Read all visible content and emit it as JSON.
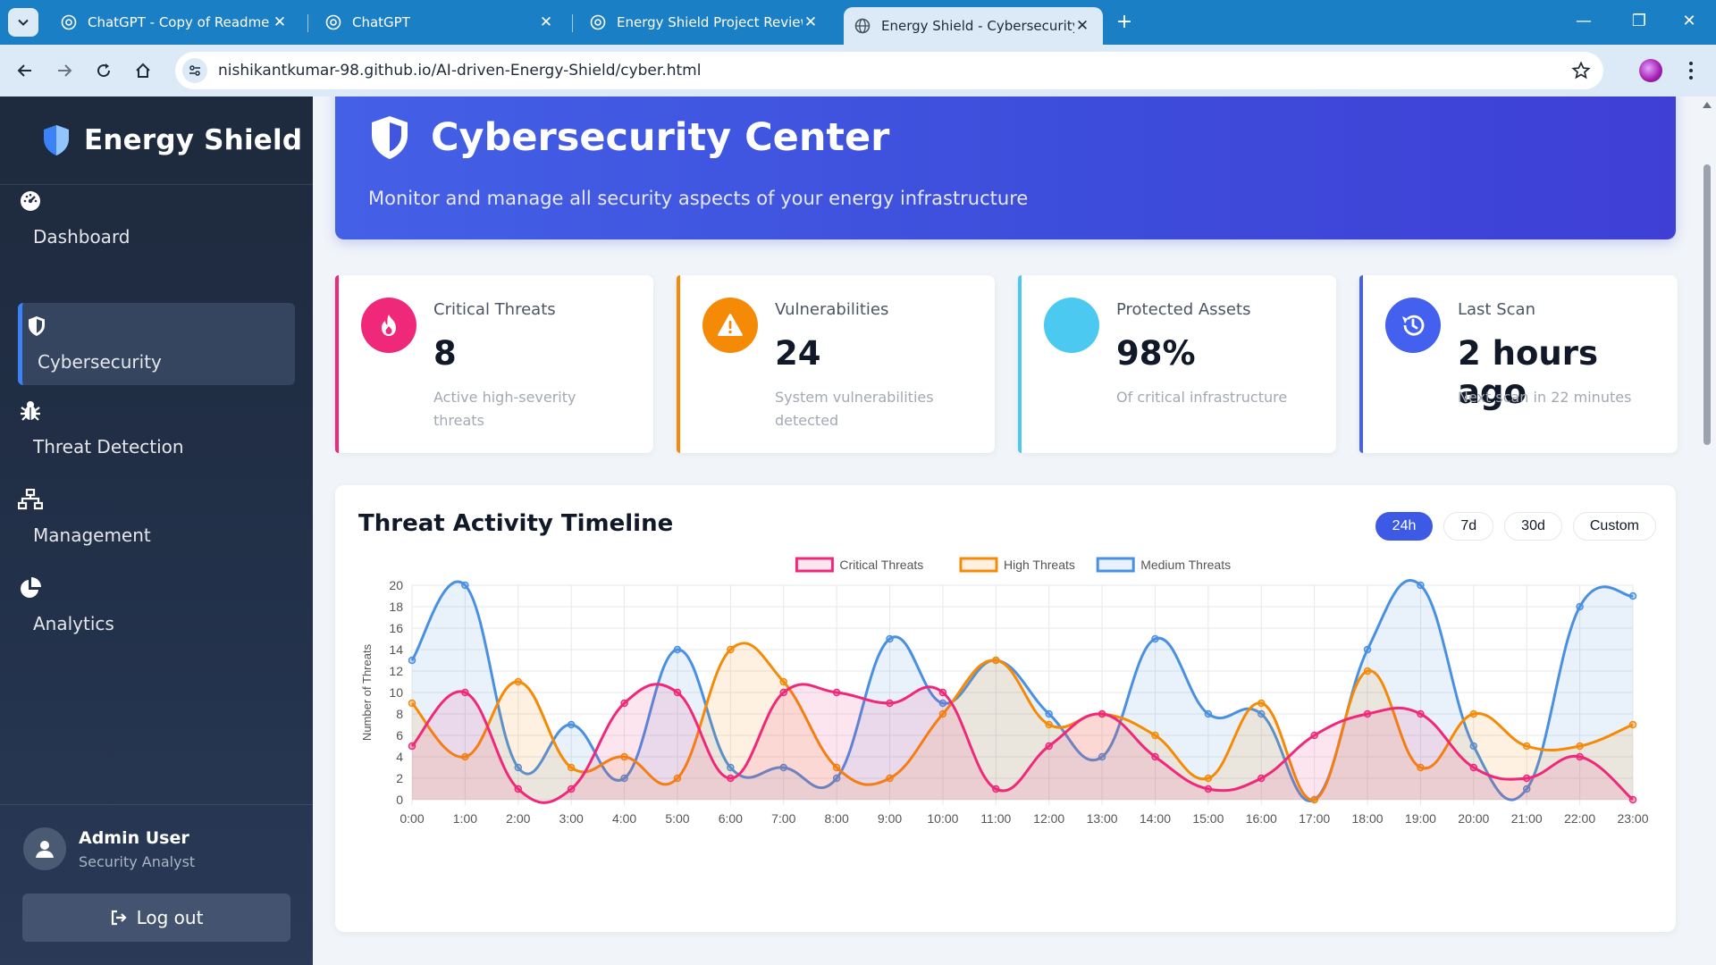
{
  "browser": {
    "tabs": [
      {
        "title": "ChatGPT - Copy of Readme",
        "active": false
      },
      {
        "title": "ChatGPT",
        "active": false
      },
      {
        "title": "Energy Shield Project Review",
        "active": false
      },
      {
        "title": "Energy Shield - Cybersecurity",
        "active": true
      }
    ],
    "url_host": "nishikantkumar-98.github.io",
    "url_path": "/AI-driven-Energy-Shield/cyber.html"
  },
  "sidebar": {
    "brand": "Energy Shield",
    "items": [
      {
        "label": "Dashboard",
        "icon": "gauge-icon"
      },
      {
        "label": "Cybersecurity",
        "icon": "shield-icon",
        "active": true
      },
      {
        "label": "Threat Detection",
        "icon": "bug-icon"
      },
      {
        "label": "Management",
        "icon": "network-icon"
      },
      {
        "label": "Analytics",
        "icon": "pie-chart-icon"
      }
    ],
    "user": {
      "name": "Admin User",
      "role": "Security Analyst"
    },
    "logout_label": "Log out"
  },
  "hero": {
    "title": "Cybersecurity Center",
    "subtitle": "Monitor and manage all security aspects of your energy infrastructure"
  },
  "stats": [
    {
      "label": "Critical Threats",
      "value": "8",
      "note": "Active high-severity threats",
      "color": "#f0287a",
      "icon": "fire-icon"
    },
    {
      "label": "Vulnerabilities",
      "value": "24",
      "note": "System vulnerabilities detected",
      "color": "#f58a07",
      "icon": "warning-icon"
    },
    {
      "label": "Protected Assets",
      "value": "98%",
      "note": "Of critical infrastructure",
      "color": "#4cc9f0",
      "icon": "shield-check-icon"
    },
    {
      "label": "Last Scan",
      "value": "2 hours ago",
      "note": "Next scan in 22 minutes",
      "color": "#4361ee",
      "icon": "history-icon"
    }
  ],
  "timeline": {
    "title": "Threat Activity Timeline",
    "ranges": [
      "24h",
      "7d",
      "30d",
      "Custom"
    ],
    "active_range": "24h"
  },
  "chart_data": {
    "type": "area",
    "categories": [
      "0:00",
      "1:00",
      "2:00",
      "3:00",
      "4:00",
      "5:00",
      "6:00",
      "7:00",
      "8:00",
      "9:00",
      "10:00",
      "11:00",
      "12:00",
      "13:00",
      "14:00",
      "15:00",
      "16:00",
      "17:00",
      "18:00",
      "19:00",
      "20:00",
      "21:00",
      "22:00",
      "23:00"
    ],
    "series": [
      {
        "name": "Critical Threats",
        "color": "#f0287a",
        "values": [
          5,
          10,
          1,
          1,
          9,
          10,
          2,
          10,
          10,
          9,
          10,
          1,
          5,
          8,
          4,
          1,
          2,
          6,
          8,
          8,
          3,
          2,
          4,
          0
        ]
      },
      {
        "name": "High Threats",
        "color": "#f58a07",
        "values": [
          9,
          4,
          11,
          3,
          4,
          2,
          14,
          11,
          3,
          2,
          8,
          13,
          7,
          8,
          6,
          2,
          9,
          0,
          12,
          3,
          8,
          5,
          5,
          7
        ]
      },
      {
        "name": "Medium Threats",
        "color": "#4a90e2",
        "values": [
          13,
          20,
          3,
          7,
          2,
          14,
          3,
          3,
          2,
          15,
          9,
          13,
          8,
          4,
          15,
          8,
          8,
          0,
          14,
          20,
          5,
          1,
          18,
          19
        ]
      }
    ],
    "xlabel": "",
    "ylabel": "Number of Threats",
    "ylim": [
      0,
      20
    ],
    "yticks": [
      0,
      2,
      4,
      6,
      8,
      10,
      12,
      14,
      16,
      18,
      20
    ],
    "grid": true,
    "legend": "top-center"
  }
}
